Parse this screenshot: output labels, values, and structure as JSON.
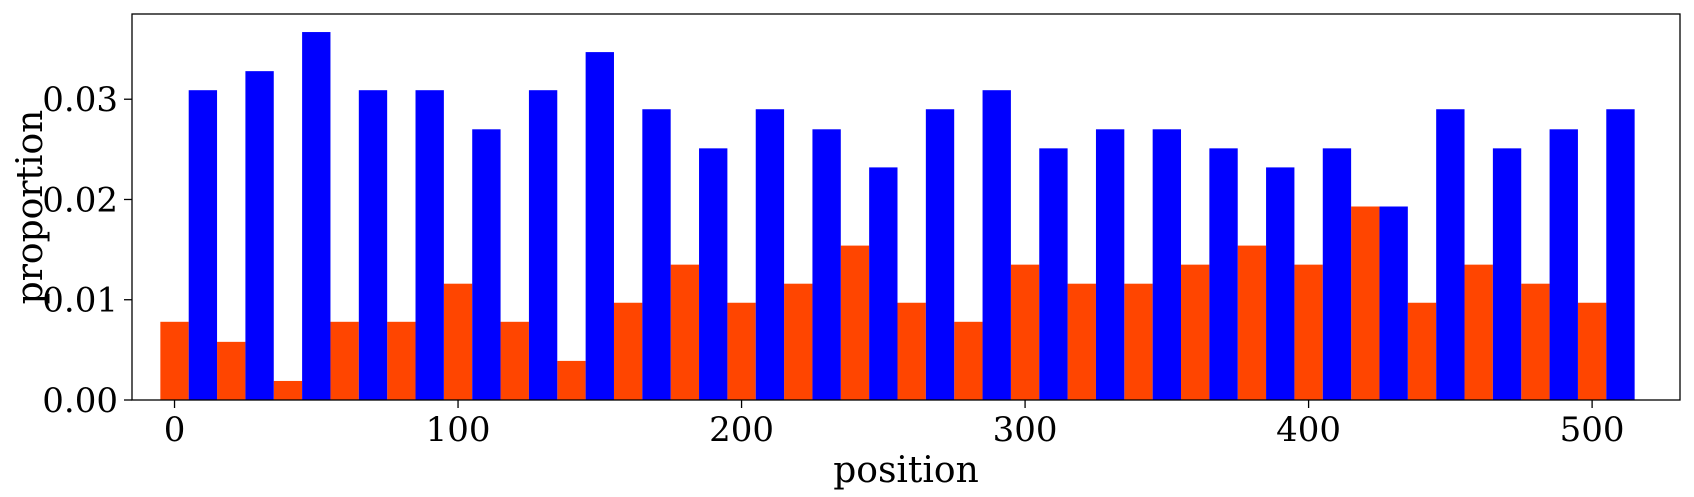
{
  "chart_data": {
    "type": "bar",
    "title": "",
    "xlabel": "position",
    "ylabel": "proportion",
    "xlim": [
      -15,
      531
    ],
    "ylim": [
      0,
      0.0385
    ],
    "xticks": [
      0,
      100,
      200,
      300,
      400,
      500
    ],
    "xtick_labels": [
      "0",
      "100",
      "200",
      "300",
      "400",
      "500"
    ],
    "yticks": [
      0,
      0.01,
      0.02,
      0.03
    ],
    "ytick_labels": [
      "0.00",
      "0.01",
      "0.02",
      "0.03"
    ],
    "grid": false,
    "bin_width": 20,
    "bin_starts": [
      -5,
      15,
      35,
      55,
      75,
      95,
      115,
      135,
      155,
      175,
      195,
      215,
      235,
      255,
      275,
      295,
      315,
      335,
      355,
      375,
      395,
      415,
      435,
      455,
      475,
      495
    ],
    "series": [
      {
        "color": "#ff4500",
        "values": [
          0.0078,
          0.0058,
          0.0019,
          0.0078,
          0.0078,
          0.0116,
          0.0078,
          0.0039,
          0.0097,
          0.0135,
          0.0097,
          0.0116,
          0.0154,
          0.0097,
          0.0078,
          0.0135,
          0.0116,
          0.0116,
          0.0135,
          0.0154,
          0.0135,
          0.0193,
          0.0097,
          0.0135,
          0.0116,
          0.0097
        ]
      },
      {
        "color": "#0000ff",
        "values": [
          0.0309,
          0.0328,
          0.0367,
          0.0309,
          0.0309,
          0.027,
          0.0309,
          0.0347,
          0.029,
          0.0251,
          0.029,
          0.027,
          0.0232,
          0.029,
          0.0309,
          0.0251,
          0.027,
          0.027,
          0.0251,
          0.0232,
          0.0251,
          0.0193,
          0.029,
          0.0251,
          0.027,
          0.029
        ]
      }
    ]
  }
}
